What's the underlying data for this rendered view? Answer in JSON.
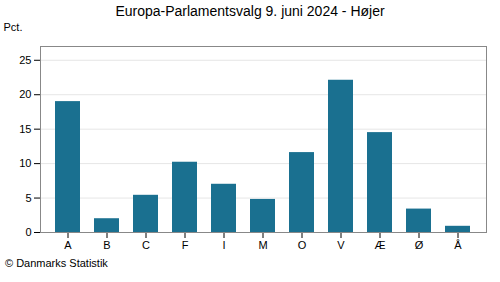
{
  "chart_data": {
    "type": "bar",
    "title": "Europa-Parlamentsvalg 9. juni 2024 - Højer",
    "ylabel": "Pct.",
    "caption": "© Danmarks Statistik",
    "categories": [
      "A",
      "B",
      "C",
      "F",
      "I",
      "M",
      "O",
      "V",
      "Æ",
      "Ø",
      "Å"
    ],
    "values": [
      19.0,
      2.0,
      5.4,
      10.2,
      7.0,
      4.8,
      11.6,
      22.1,
      14.5,
      3.4,
      0.9
    ],
    "color": "#1a7090",
    "ylim": [
      0,
      27
    ],
    "yticks": [
      0,
      5,
      10,
      15,
      20,
      25
    ],
    "grid": true
  }
}
